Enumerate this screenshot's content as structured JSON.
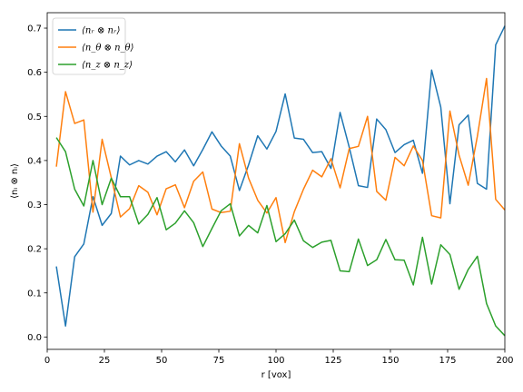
{
  "chart_data": {
    "type": "line",
    "xlabel": "r [vox]",
    "ylabel": "⟨nᵢ ⊗ nᵢ⟩",
    "xlim": [
      0,
      200
    ],
    "ylim": [
      -0.028,
      0.735
    ],
    "xticks": [
      0,
      25,
      50,
      75,
      100,
      125,
      150,
      175,
      200
    ],
    "yticks": [
      0.0,
      0.1,
      0.2,
      0.3,
      0.4,
      0.5,
      0.6,
      0.7
    ],
    "xtick_labels": [
      "0",
      "25",
      "50",
      "75",
      "100",
      "125",
      "150",
      "175",
      "200"
    ],
    "ytick_labels": [
      "0.0",
      "0.1",
      "0.2",
      "0.3",
      "0.4",
      "0.5",
      "0.6",
      "0.7"
    ],
    "legend_position": "upper-left",
    "grid": false,
    "x": [
      4,
      8,
      12,
      16,
      20,
      24,
      28,
      32,
      36,
      40,
      44,
      48,
      52,
      56,
      60,
      64,
      68,
      72,
      76,
      80,
      84,
      88,
      92,
      96,
      100,
      104,
      108,
      112,
      116,
      120,
      124,
      128,
      132,
      136,
      140,
      144,
      148,
      152,
      156,
      160,
      164,
      168,
      172,
      176,
      180,
      184,
      188,
      192,
      196,
      200
    ],
    "series": [
      {
        "name": "⟨nᵣ ⊗ nᵣ⟩",
        "color": "#1f77b4",
        "values": [
          0.16,
          0.025,
          0.182,
          0.211,
          0.318,
          0.253,
          0.28,
          0.41,
          0.39,
          0.4,
          0.392,
          0.41,
          0.42,
          0.397,
          0.424,
          0.388,
          0.425,
          0.465,
          0.433,
          0.41,
          0.332,
          0.39,
          0.456,
          0.426,
          0.466,
          0.551,
          0.451,
          0.448,
          0.418,
          0.42,
          0.382,
          0.509,
          0.43,
          0.343,
          0.339,
          0.494,
          0.47,
          0.418,
          0.436,
          0.446,
          0.371,
          0.605,
          0.521,
          0.302,
          0.481,
          0.503,
          0.348,
          0.335,
          0.662,
          0.705
        ]
      },
      {
        "name": "⟨n_θ ⊗ n_θ⟩",
        "color": "#ff7f0e",
        "values": [
          0.386,
          0.556,
          0.484,
          0.492,
          0.283,
          0.448,
          0.361,
          0.272,
          0.291,
          0.343,
          0.328,
          0.277,
          0.336,
          0.345,
          0.293,
          0.353,
          0.374,
          0.29,
          0.282,
          0.285,
          0.438,
          0.36,
          0.31,
          0.281,
          0.316,
          0.214,
          0.284,
          0.335,
          0.378,
          0.363,
          0.404,
          0.338,
          0.427,
          0.432,
          0.5,
          0.33,
          0.31,
          0.407,
          0.388,
          0.433,
          0.4,
          0.275,
          0.27,
          0.512,
          0.412,
          0.344,
          0.455,
          0.586,
          0.312,
          0.288
        ]
      },
      {
        "name": "⟨n_z ⊗ n_z⟩",
        "color": "#2ca02c",
        "values": [
          0.452,
          0.42,
          0.335,
          0.297,
          0.4,
          0.3,
          0.36,
          0.318,
          0.318,
          0.256,
          0.278,
          0.316,
          0.243,
          0.258,
          0.286,
          0.259,
          0.205,
          0.246,
          0.286,
          0.302,
          0.229,
          0.253,
          0.236,
          0.298,
          0.216,
          0.234,
          0.265,
          0.218,
          0.203,
          0.215,
          0.219,
          0.15,
          0.148,
          0.222,
          0.162,
          0.175,
          0.221,
          0.175,
          0.174,
          0.118,
          0.226,
          0.12,
          0.209,
          0.187,
          0.108,
          0.153,
          0.183,
          0.076,
          0.025,
          0.003
        ]
      }
    ]
  }
}
